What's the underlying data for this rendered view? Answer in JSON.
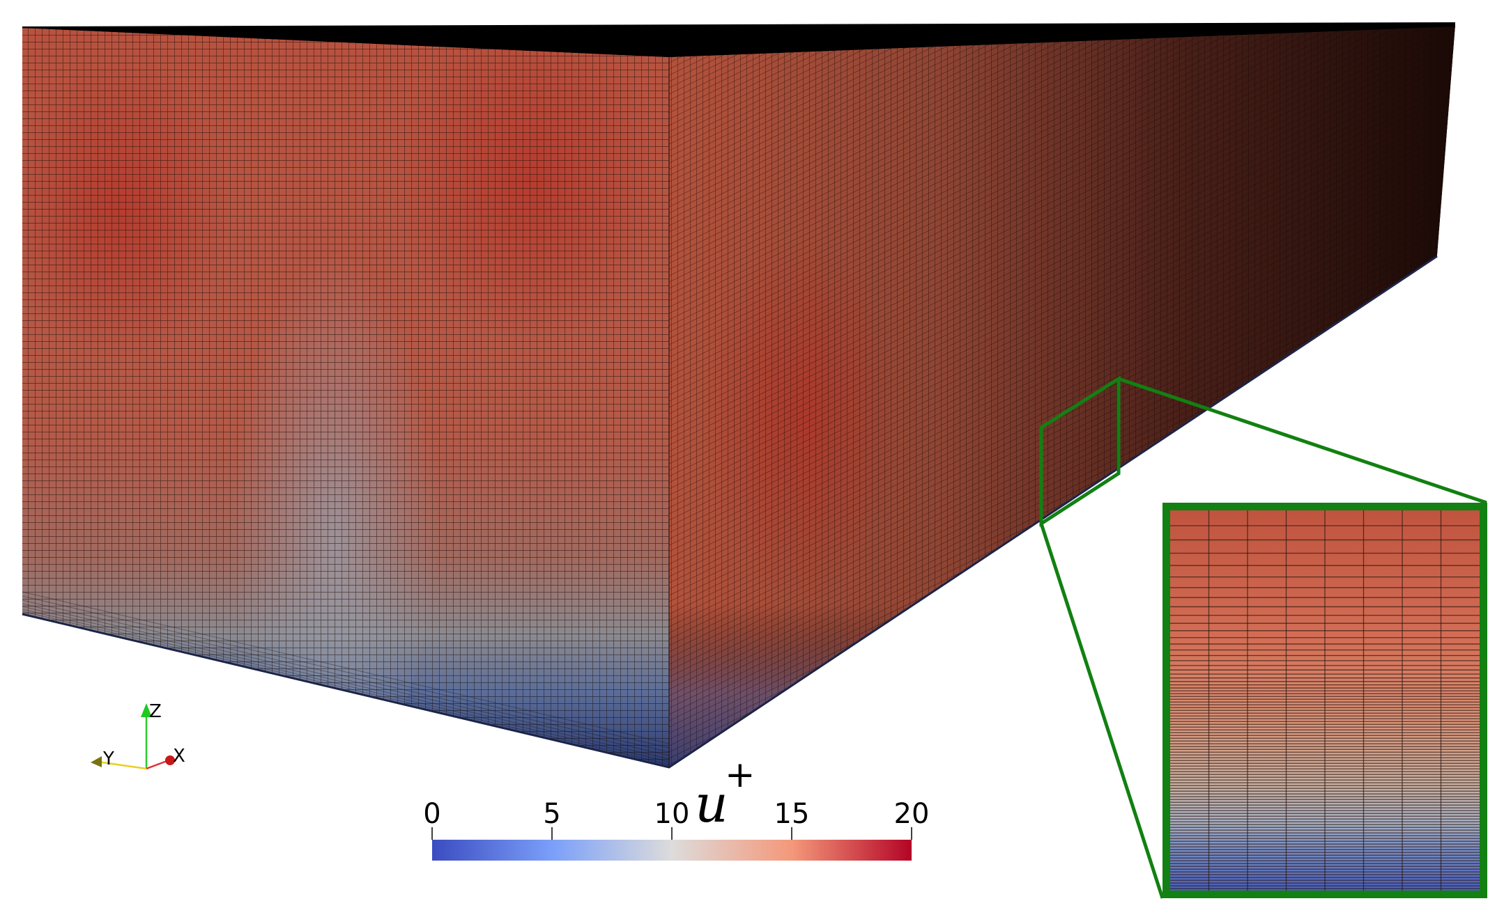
{
  "colorbar": {
    "title": "u",
    "title_superscript": "+",
    "min": 0,
    "max": 20,
    "ticks": [
      "0",
      "5",
      "10",
      "15",
      "20"
    ],
    "colormap": "cool-to-warm",
    "color_low": "#3b4cc0",
    "color_mid": "#dddcdb",
    "color_high": "#b40426"
  },
  "axes": {
    "x": "X",
    "y": "Y",
    "z": "Z"
  },
  "zoom_inset": {
    "frame_color": "#128012"
  }
}
